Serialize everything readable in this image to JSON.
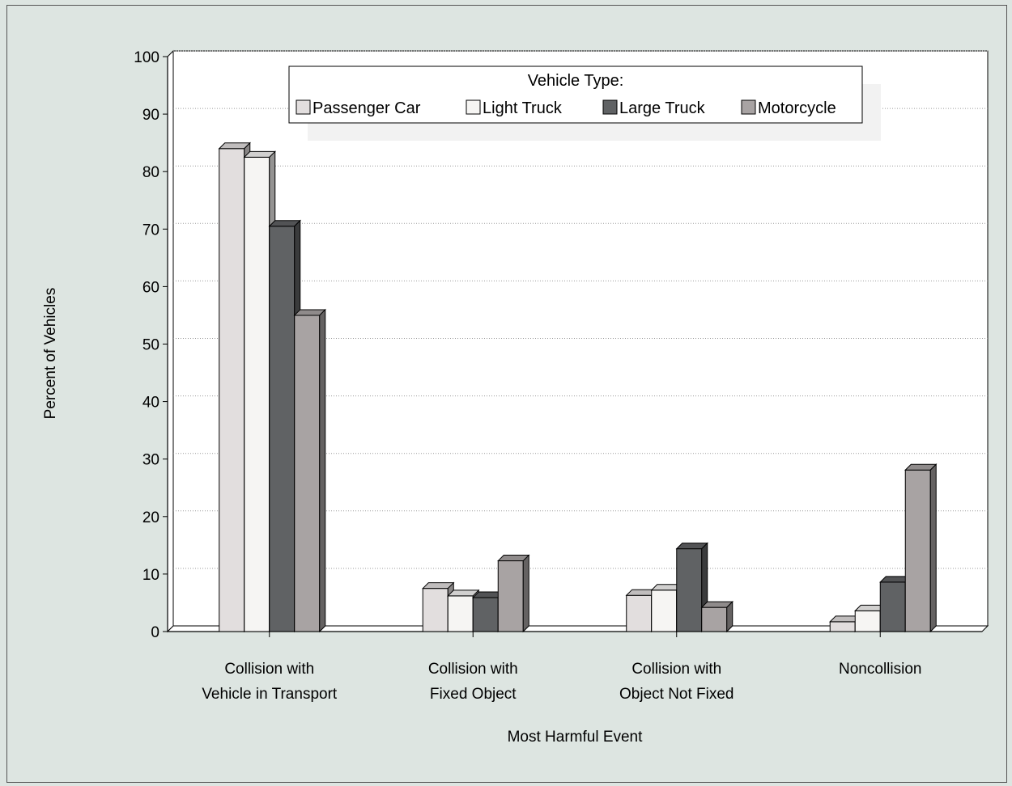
{
  "chart_data": {
    "type": "bar",
    "title": "",
    "xlabel": "Most Harmful Event",
    "ylabel": "Percent of Vehicles",
    "ylim": [
      0,
      100
    ],
    "yticks": [
      0,
      10,
      20,
      30,
      40,
      50,
      60,
      70,
      80,
      90,
      100
    ],
    "grid": true,
    "legend": {
      "title": "Vehicle Type:",
      "placement": "top"
    },
    "categories": [
      [
        "Collision with",
        "Vehicle in Transport"
      ],
      [
        "Collision with",
        "Fixed Object"
      ],
      [
        "Collision with",
        "Object Not Fixed"
      ],
      [
        "Noncollision"
      ]
    ],
    "series": [
      {
        "name": "Passenger Car",
        "color": "#e2dede",
        "values": [
          84,
          7.5,
          6.3,
          1.7
        ]
      },
      {
        "name": "Light Truck",
        "color": "#f6f5f3",
        "values": [
          82.5,
          6.2,
          7.2,
          3.6
        ]
      },
      {
        "name": "Large Truck",
        "color": "#606264",
        "values": [
          70.5,
          5.9,
          14.4,
          8.6
        ]
      },
      {
        "name": "Motorcycle",
        "color": "#a8a3a3",
        "values": [
          55,
          12.3,
          4.2,
          28.1
        ]
      }
    ]
  }
}
